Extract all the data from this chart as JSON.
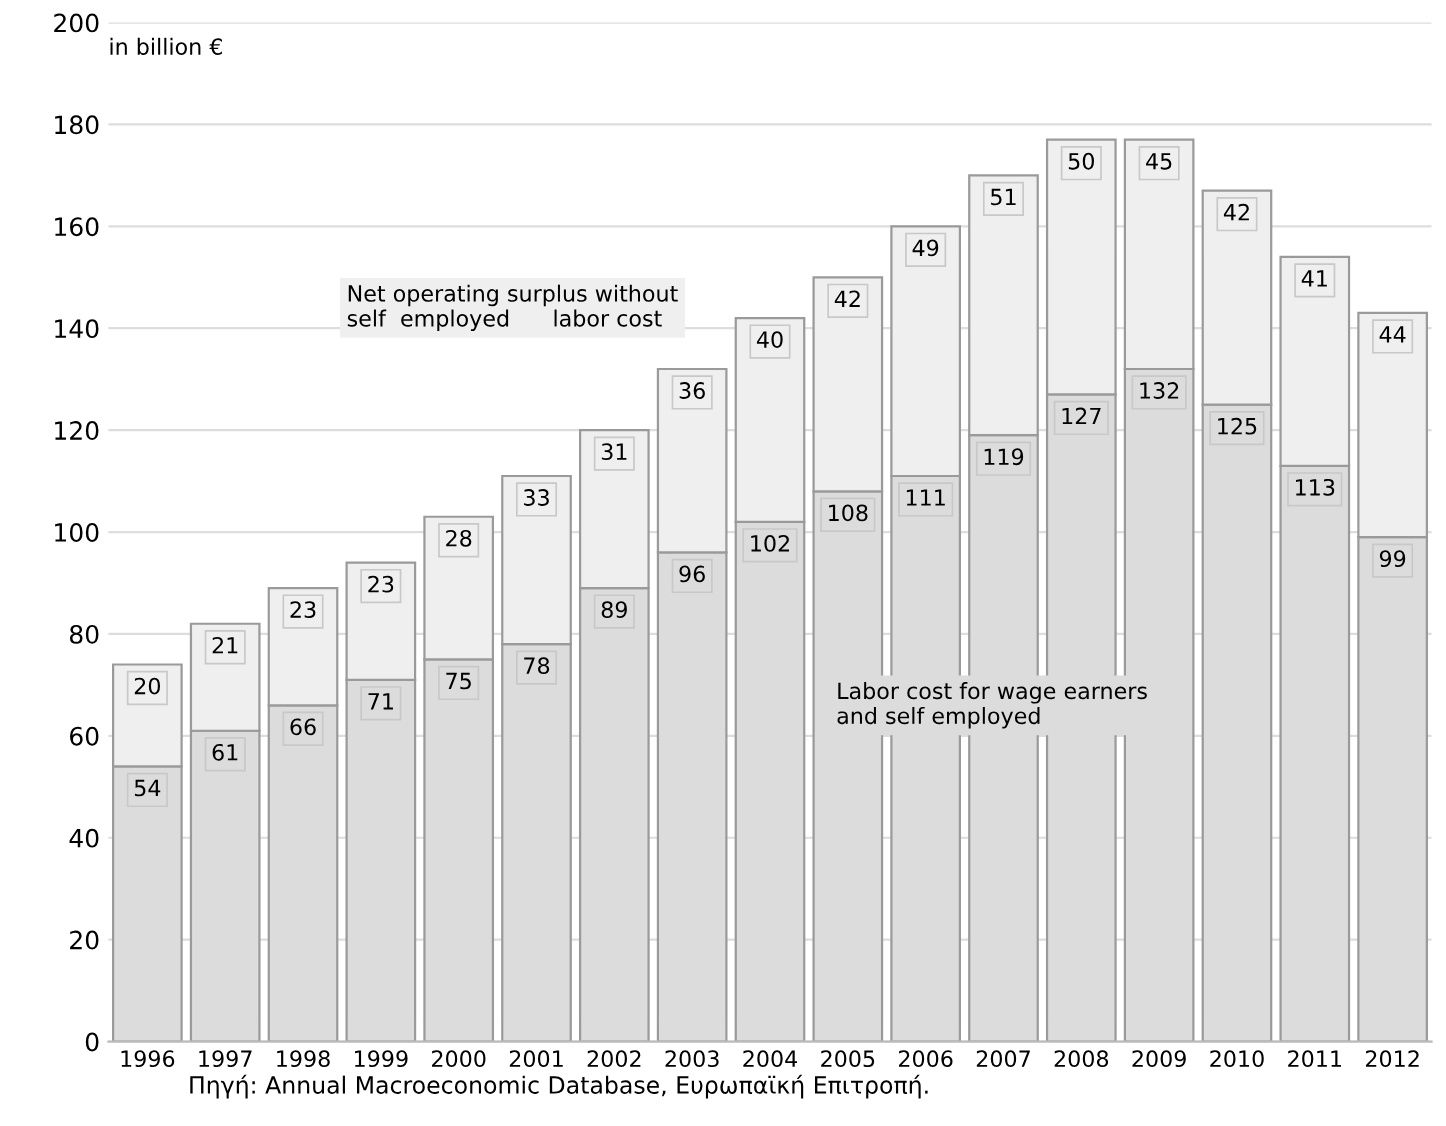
{
  "chart_data": {
    "type": "bar",
    "stacked": true,
    "ylabel": "in billion €",
    "categories": [
      "1996",
      "1997",
      "1998",
      "1999",
      "2000",
      "2001",
      "2002",
      "2003",
      "2004",
      "2005",
      "2006",
      "2007",
      "2008",
      "2009",
      "2010",
      "2011",
      "2012"
    ],
    "series": [
      {
        "name": "Labor cost for wage earners\nand self employed",
        "color": "#dcdcdc",
        "values": [
          54,
          61,
          66,
          71,
          75,
          78,
          89,
          96,
          102,
          108,
          111,
          119,
          127,
          132,
          125,
          113,
          99
        ]
      },
      {
        "name": "Net operating surplus without\nself  employed      labor cost",
        "color": "#efefef",
        "values": [
          20,
          21,
          23,
          23,
          28,
          33,
          31,
          36,
          40,
          42,
          49,
          51,
          50,
          45,
          42,
          41,
          44
        ]
      }
    ],
    "ylim": [
      0,
      200
    ],
    "yticks": [
      0,
      20,
      40,
      60,
      80,
      100,
      120,
      140,
      160,
      180,
      200
    ],
    "grid": "y",
    "data_labels": true,
    "annotations": [
      "Πηγή: Annual Macroeconomic Database, Ευρωπαϊκή Επιτροπή."
    ]
  }
}
